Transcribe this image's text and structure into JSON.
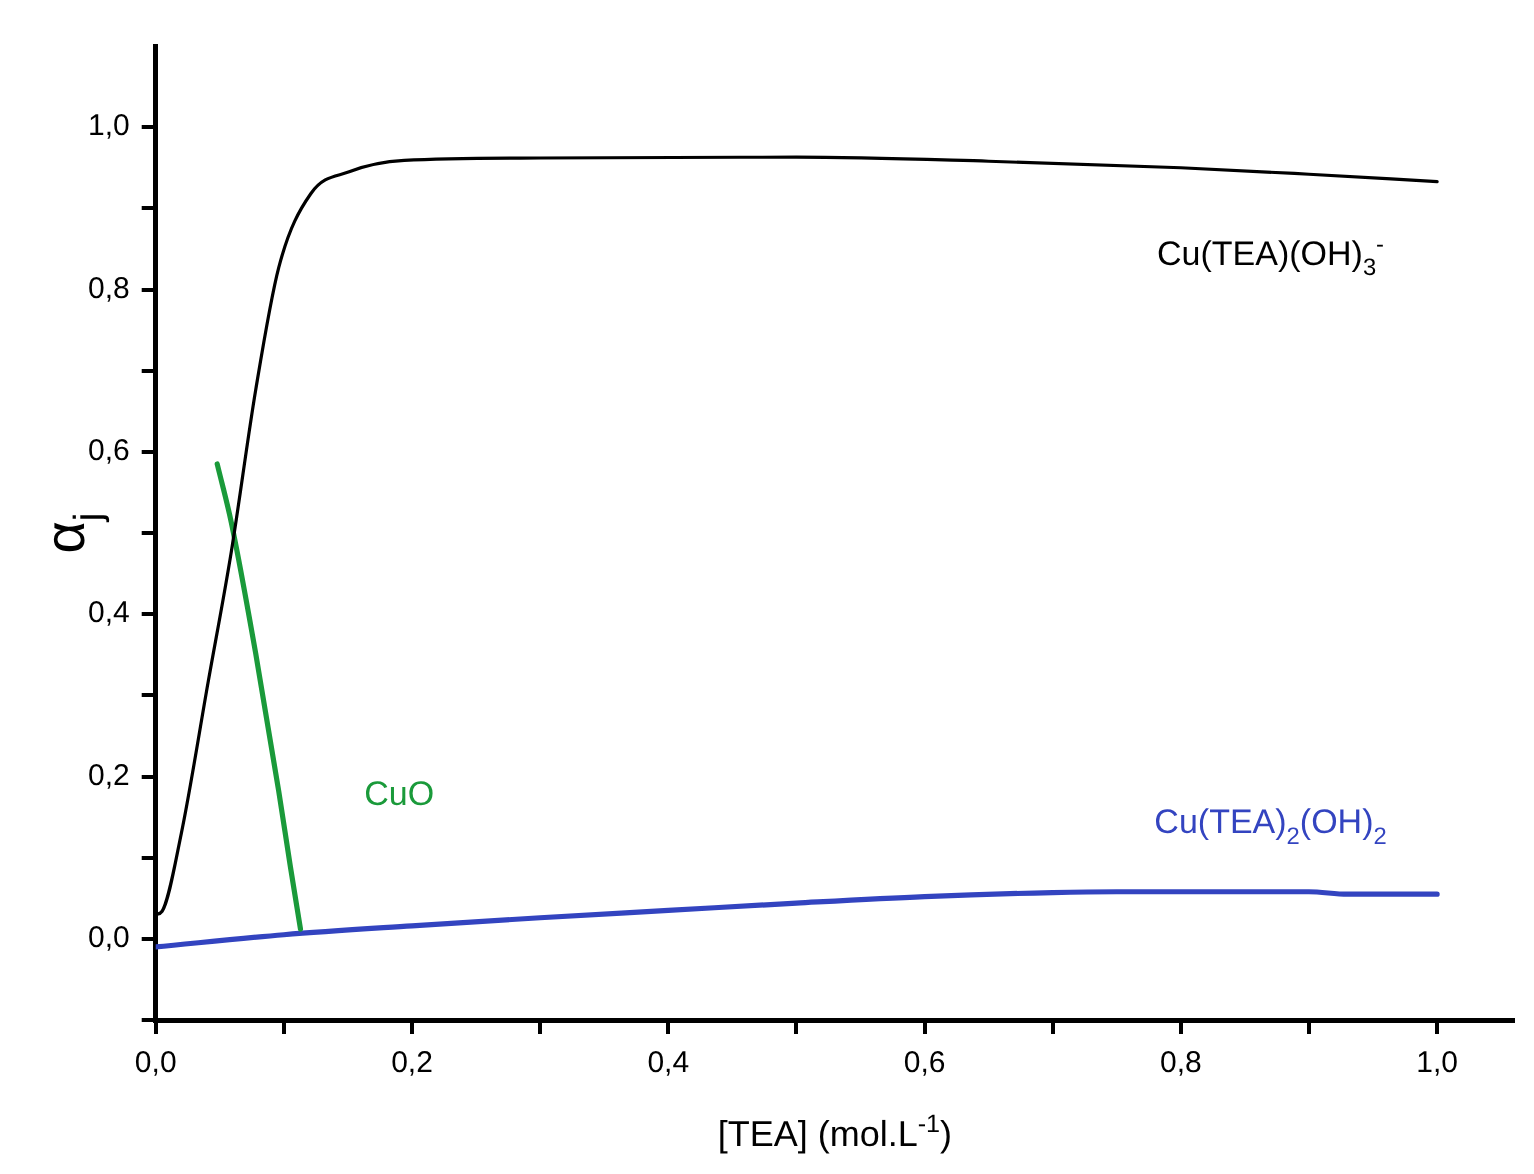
{
  "chart_data": {
    "type": "line",
    "xlabel": "[TEA] (mol.L$^{-1}$)",
    "ylabel": "α$_{j}$",
    "xlim": [
      0,
      1.06
    ],
    "ylim": [
      -0.1,
      1.1
    ],
    "xticks": [
      {
        "value": 0,
        "label": "0,0"
      },
      {
        "value": 0.1,
        "label": null
      },
      {
        "value": 0.2,
        "label": "0,2"
      },
      {
        "value": 0.3,
        "label": null
      },
      {
        "value": 0.4,
        "label": "0,4"
      },
      {
        "value": 0.5,
        "label": null
      },
      {
        "value": 0.6,
        "label": "0,6"
      },
      {
        "value": 0.7,
        "label": null
      },
      {
        "value": 0.8,
        "label": "0,8"
      },
      {
        "value": 0.9,
        "label": null
      },
      {
        "value": 1,
        "label": "1,0"
      }
    ],
    "yticks": [
      {
        "value": -0.1,
        "label": null
      },
      {
        "value": 0,
        "label": "0,0"
      },
      {
        "value": 0.1,
        "label": null
      },
      {
        "value": 0.2,
        "label": "0,2"
      },
      {
        "value": 0.3,
        "label": null
      },
      {
        "value": 0.4,
        "label": "0,4"
      },
      {
        "value": 0.5,
        "label": null
      },
      {
        "value": 0.6,
        "label": "0,6"
      },
      {
        "value": 0.7,
        "label": null
      },
      {
        "value": 0.8,
        "label": "0,8"
      },
      {
        "value": 0.9,
        "label": null
      },
      {
        "value": 1,
        "label": "1,0"
      }
    ],
    "grid": false,
    "legend": false,
    "marker": "none",
    "line_style": "solid",
    "series": [
      {
        "name": "Cu(TEA)(OH)$_{3}$$^{-}$",
        "color": "#000000",
        "x": [
          0,
          0.005,
          0.02,
          0.041,
          0.059,
          0.078,
          0.096,
          0.121,
          0.151,
          0.194,
          0.3,
          0.5,
          0.65,
          0.8,
          0.9,
          1.0
        ],
        "values": [
          0.03,
          0.034,
          0.13,
          0.317,
          0.477,
          0.676,
          0.827,
          0.918,
          0.945,
          0.959,
          0.962,
          0.963,
          0.958,
          0.95,
          0.942,
          0.933
        ]
      },
      {
        "name": "CuO",
        "color": "#1a9a3a",
        "x": [
          0.048,
          0.059,
          0.078,
          0.096,
          0.105,
          0.113
        ],
        "values": [
          0.585,
          0.513,
          0.352,
          0.182,
          0.09,
          0.012
        ]
      },
      {
        "name": "Cu(TEA)$_{2}$(OH)$_{2}$",
        "color": "#3344c0",
        "x": [
          0,
          0.1,
          0.2,
          0.3,
          0.4,
          0.5,
          0.6,
          0.7,
          0.75,
          0.9,
          0.93,
          1.0
        ],
        "values": [
          -0.01,
          0.005,
          0.016,
          0.026,
          0.035,
          0.044,
          0.052,
          0.057,
          0.058,
          0.058,
          0.055,
          0.055
        ]
      }
    ]
  }
}
